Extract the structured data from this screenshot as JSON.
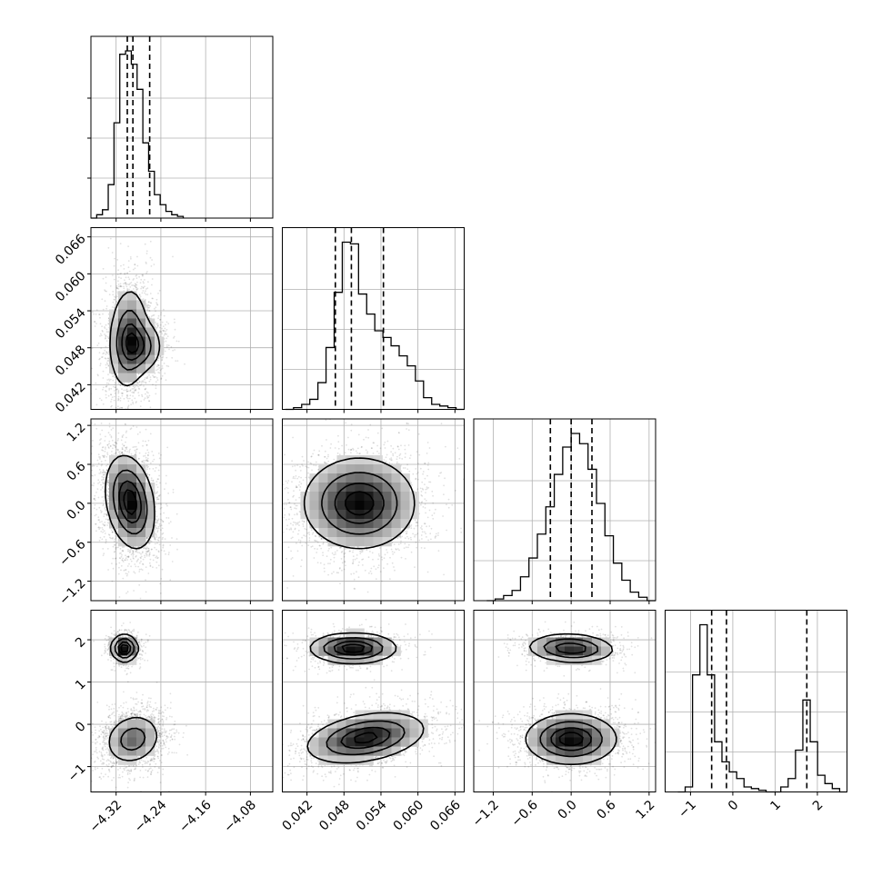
{
  "chart_data": {
    "type": "scatter",
    "subtype": "corner-plot",
    "title": "",
    "colors": {
      "frame": "#000000",
      "grid": "#b0b0b0",
      "points": "#000000",
      "background": "#ffffff"
    },
    "grid": true,
    "parameters": [
      {
        "index": 0,
        "range": [
          -4.365,
          -4.04
        ],
        "ticks": [
          -4.32,
          -4.24,
          -4.16,
          -4.08
        ],
        "tick_labels": [
          "−4.32",
          "−4.24",
          "−4.16",
          "−4.08"
        ],
        "quantiles": [
          -4.3,
          -4.29,
          -4.26
        ]
      },
      {
        "index": 1,
        "range": [
          0.038,
          0.0675
        ],
        "ticks": [
          0.042,
          0.048,
          0.054,
          0.06,
          0.066
        ],
        "tick_labels": [
          "0.042",
          "0.048",
          "0.054",
          "0.060",
          "0.066"
        ],
        "quantiles": [
          0.0466,
          0.0492,
          0.0544
        ]
      },
      {
        "index": 2,
        "range": [
          -1.5,
          1.3
        ],
        "ticks": [
          -1.2,
          -0.6,
          0.0,
          0.6,
          1.2
        ],
        "tick_labels": [
          "−1.2",
          "−0.6",
          "0.0",
          "0.6",
          "1.2"
        ],
        "quantiles": [
          -0.32,
          0.0,
          0.32
        ]
      },
      {
        "index": 3,
        "range": [
          -1.6,
          2.7
        ],
        "ticks": [
          -1,
          0,
          1,
          2
        ],
        "tick_labels": [
          "−1",
          "0",
          "1",
          "2"
        ],
        "quantiles": [
          -0.5,
          -0.15,
          1.75
        ]
      }
    ],
    "histograms": [
      {
        "param": 0,
        "bin_range": [
          -4.365,
          -4.2
        ],
        "counts": [
          0.0,
          0.02,
          0.05,
          0.2,
          0.57,
          0.98,
          1.0,
          0.92,
          0.77,
          0.45,
          0.28,
          0.14,
          0.08,
          0.04,
          0.02,
          0.01
        ]
      },
      {
        "param": 1,
        "bin_range": [
          0.0385,
          0.0675
        ],
        "counts": [
          0.0,
          0.01,
          0.03,
          0.06,
          0.16,
          0.37,
          0.7,
          1.0,
          0.99,
          0.69,
          0.57,
          0.47,
          0.43,
          0.38,
          0.32,
          0.26,
          0.17,
          0.07,
          0.03,
          0.02,
          0.01,
          0.0
        ]
      },
      {
        "param": 2,
        "bin_range": [
          -1.3,
          1.3
        ],
        "counts": [
          0.0,
          0.01,
          0.03,
          0.06,
          0.14,
          0.25,
          0.39,
          0.55,
          0.74,
          0.9,
          0.98,
          0.92,
          0.77,
          0.57,
          0.38,
          0.22,
          0.12,
          0.05,
          0.02,
          0.0
        ]
      },
      {
        "param": 3,
        "bin_range": [
          -1.3,
          2.7
        ],
        "counts": [
          0.0,
          0.03,
          0.7,
          1.0,
          0.7,
          0.3,
          0.18,
          0.12,
          0.08,
          0.03,
          0.02,
          0.01,
          0.0,
          0.0,
          0.03,
          0.08,
          0.25,
          0.55,
          0.3,
          0.1,
          0.05,
          0.02,
          0.0
        ]
      }
    ],
    "pairs": [
      {
        "x": 0,
        "y": 1,
        "modes": [
          {
            "cx": -4.298,
            "cy": 0.0495,
            "sx": 0.0175,
            "sy": 0.0042,
            "rho": 0.1,
            "w": 0.7
          },
          {
            "cx": -4.275,
            "cy": 0.0482,
            "sx": 0.02,
            "sy": 0.0022,
            "rho": 0.0,
            "w": 0.3
          }
        ]
      },
      {
        "x": 0,
        "y": 2,
        "modes": [
          {
            "cx": -4.295,
            "cy": 0.02,
            "sx": 0.022,
            "sy": 0.36,
            "rho": -0.25,
            "w": 1.0
          }
        ]
      },
      {
        "x": 1,
        "y": 2,
        "modes": [
          {
            "cx": 0.0505,
            "cy": 0.0,
            "sx": 0.0045,
            "sy": 0.35,
            "rho": 0.0,
            "w": 1.0
          }
        ]
      },
      {
        "x": 0,
        "y": 3,
        "modes": [
          {
            "cx": -4.305,
            "cy": 1.8,
            "sx": 0.012,
            "sy": 0.16,
            "rho": 0.0,
            "w": 0.32
          },
          {
            "cx": -4.29,
            "cy": -0.35,
            "sx": 0.025,
            "sy": 0.3,
            "rho": 0.15,
            "w": 0.68
          }
        ]
      },
      {
        "x": 1,
        "y": 3,
        "modes": [
          {
            "cx": 0.0495,
            "cy": 1.8,
            "sx": 0.0035,
            "sy": 0.18,
            "rho": 0.0,
            "w": 0.32
          },
          {
            "cx": 0.0515,
            "cy": -0.32,
            "sx": 0.0048,
            "sy": 0.3,
            "rho": 0.35,
            "w": 0.68
          }
        ]
      },
      {
        "x": 2,
        "y": 3,
        "modes": [
          {
            "cx": 0.0,
            "cy": 1.8,
            "sx": 0.33,
            "sy": 0.17,
            "rho": -0.1,
            "w": 0.32
          },
          {
            "cx": 0.0,
            "cy": -0.35,
            "sx": 0.35,
            "sy": 0.3,
            "rho": 0.0,
            "w": 0.68
          }
        ]
      }
    ]
  }
}
